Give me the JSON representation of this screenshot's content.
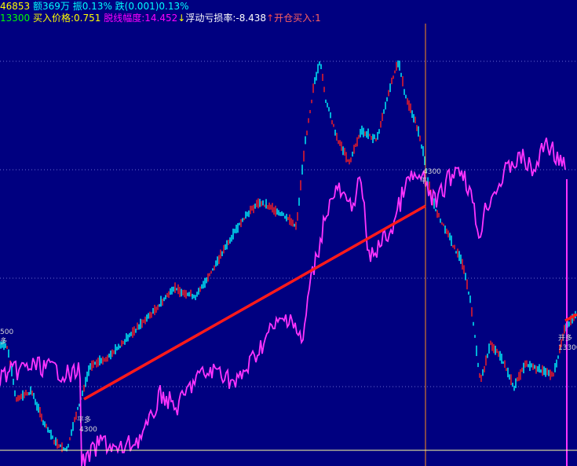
{
  "header": {
    "line1": [
      {
        "text": "46853",
        "color": "#ffff00"
      },
      {
        "text": " 额369万",
        "color": "#00ffff"
      },
      {
        "text": " 振0.13%",
        "color": "#00ffff"
      },
      {
        "text": " 跌(0.001)0.13%",
        "color": "#00ffff"
      }
    ],
    "line2": [
      {
        "text": "13300",
        "color": "#00ff00"
      },
      {
        "text": " 买入价格:0.751",
        "color": "#ffff00"
      },
      {
        "text": " 脱线幅度:14.452",
        "color": "#ff00ff"
      },
      {
        "text": "↓",
        "color": "#ffff00"
      },
      {
        "text": "浮动亏损率:-8.438",
        "color": "#ffffff"
      },
      {
        "text": "↑",
        "color": "#ff4040"
      },
      {
        "text": "开仓买入:1",
        "color": "#ff6060"
      }
    ]
  },
  "markers": {
    "left_value": "500",
    "left_tag": "多",
    "buy_tag": "平多",
    "buy_value": "4300",
    "mid_value": "4300",
    "mid_tag": "平",
    "right_tag": "开多",
    "right_value": "13300"
  },
  "colors": {
    "background": "#000080",
    "up_candle": "#ff2020",
    "down_candle": "#00ffff",
    "indicator": "#ff33ff",
    "trend_line": "#ff1a1a",
    "cursor": "#ff8c1a",
    "baseline": "#ffffa0"
  }
}
